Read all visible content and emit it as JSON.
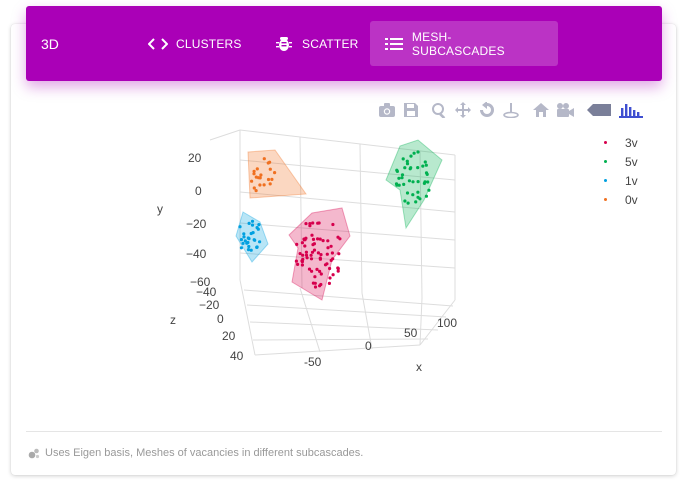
{
  "header": {
    "title": "3D",
    "tabs": [
      {
        "label": "CLUSTERS",
        "icon": "code-icon",
        "active": false
      },
      {
        "label": "SCATTER",
        "icon": "bug-icon",
        "active": false
      },
      {
        "label": "MESH-SUBCASCADES",
        "icon": "list-icon",
        "active": true
      }
    ]
  },
  "modebar": [
    "camera-icon",
    "save-icon",
    "zoom-icon",
    "pan-icon",
    "orbit-rotation-icon",
    "turntable-rotation-icon",
    "reset-camera-icon",
    "last-save-camera-icon",
    "toggle-hover-icon",
    "plotly-logo-icon"
  ],
  "chart_data": {
    "type": "scatter",
    "scatter_mode": "3d-mesh",
    "xlabel": "x",
    "ylabel": "y",
    "zlabel": "z",
    "x_ticks": [
      "-50",
      "0",
      "50",
      "100"
    ],
    "y_ticks": [
      "20",
      "0",
      "−20",
      "−40",
      "−60"
    ],
    "z_ticks": [
      "−40",
      "−20",
      "0",
      "20",
      "40"
    ],
    "legend_position": "top-right",
    "series": [
      {
        "name": "3v",
        "color": "#d6004d"
      },
      {
        "name": "5v",
        "color": "#00b050"
      },
      {
        "name": "1v",
        "color": "#00a0e0"
      },
      {
        "name": "0v",
        "color": "#f07020"
      }
    ]
  },
  "footer": {
    "icon": "bubbles-icon",
    "text": "Uses Eigen basis, Meshes of vacancies in different subcascades."
  }
}
